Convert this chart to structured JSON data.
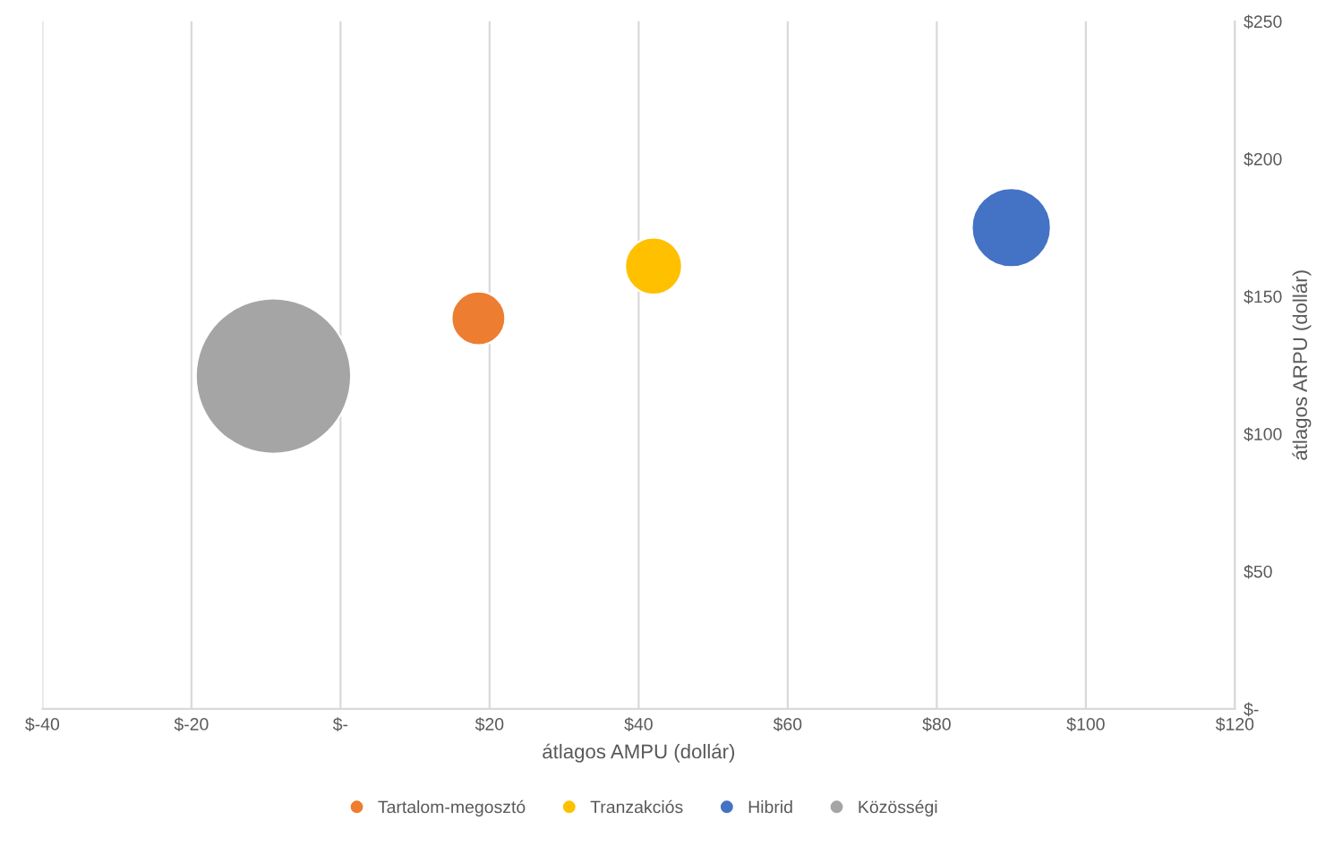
{
  "chart_data": {
    "type": "bubble",
    "xlabel": "átlagos AMPU (dollár)",
    "ylabel": "átlagos ARPU (dollár)",
    "series": [
      {
        "name": "Tartalom-megosztó",
        "color": "#ed7d31",
        "x": [
          18.5
        ],
        "values": [
          142
        ],
        "sizes": [
          0.12
        ]
      },
      {
        "name": "Tranzakciós",
        "color": "#ffc000",
        "x": [
          42
        ],
        "values": [
          161
        ],
        "sizes": [
          0.135
        ]
      },
      {
        "name": "Hibrid",
        "color": "#4472c4",
        "x": [
          90
        ],
        "values": [
          175
        ],
        "sizes": [
          0.26
        ]
      },
      {
        "name": "Közösségi",
        "color": "#a5a5a5",
        "x": [
          -9
        ],
        "values": [
          121
        ],
        "sizes": [
          1
        ]
      }
    ],
    "xlim": [
      -40,
      120
    ],
    "xticks": [
      {
        "value": -40,
        "label": "$-40"
      },
      {
        "value": -20,
        "label": "$-20"
      },
      {
        "value": 0,
        "label": "$-"
      },
      {
        "value": 20,
        "label": "$20"
      },
      {
        "value": 40,
        "label": "$40"
      },
      {
        "value": 60,
        "label": "$60"
      },
      {
        "value": 80,
        "label": "$80"
      },
      {
        "value": 100,
        "label": "$100"
      },
      {
        "value": 120,
        "label": "$120"
      }
    ],
    "ylim": [
      0,
      250
    ],
    "yticks": [
      {
        "value": 0,
        "label": "$-"
      },
      {
        "value": 50,
        "label": "$50"
      },
      {
        "value": 100,
        "label": "$100"
      },
      {
        "value": 150,
        "label": "$150"
      },
      {
        "value": 200,
        "label": "$200"
      },
      {
        "value": 250,
        "label": "$250"
      }
    ],
    "grid": "x",
    "legend": "bottom"
  }
}
